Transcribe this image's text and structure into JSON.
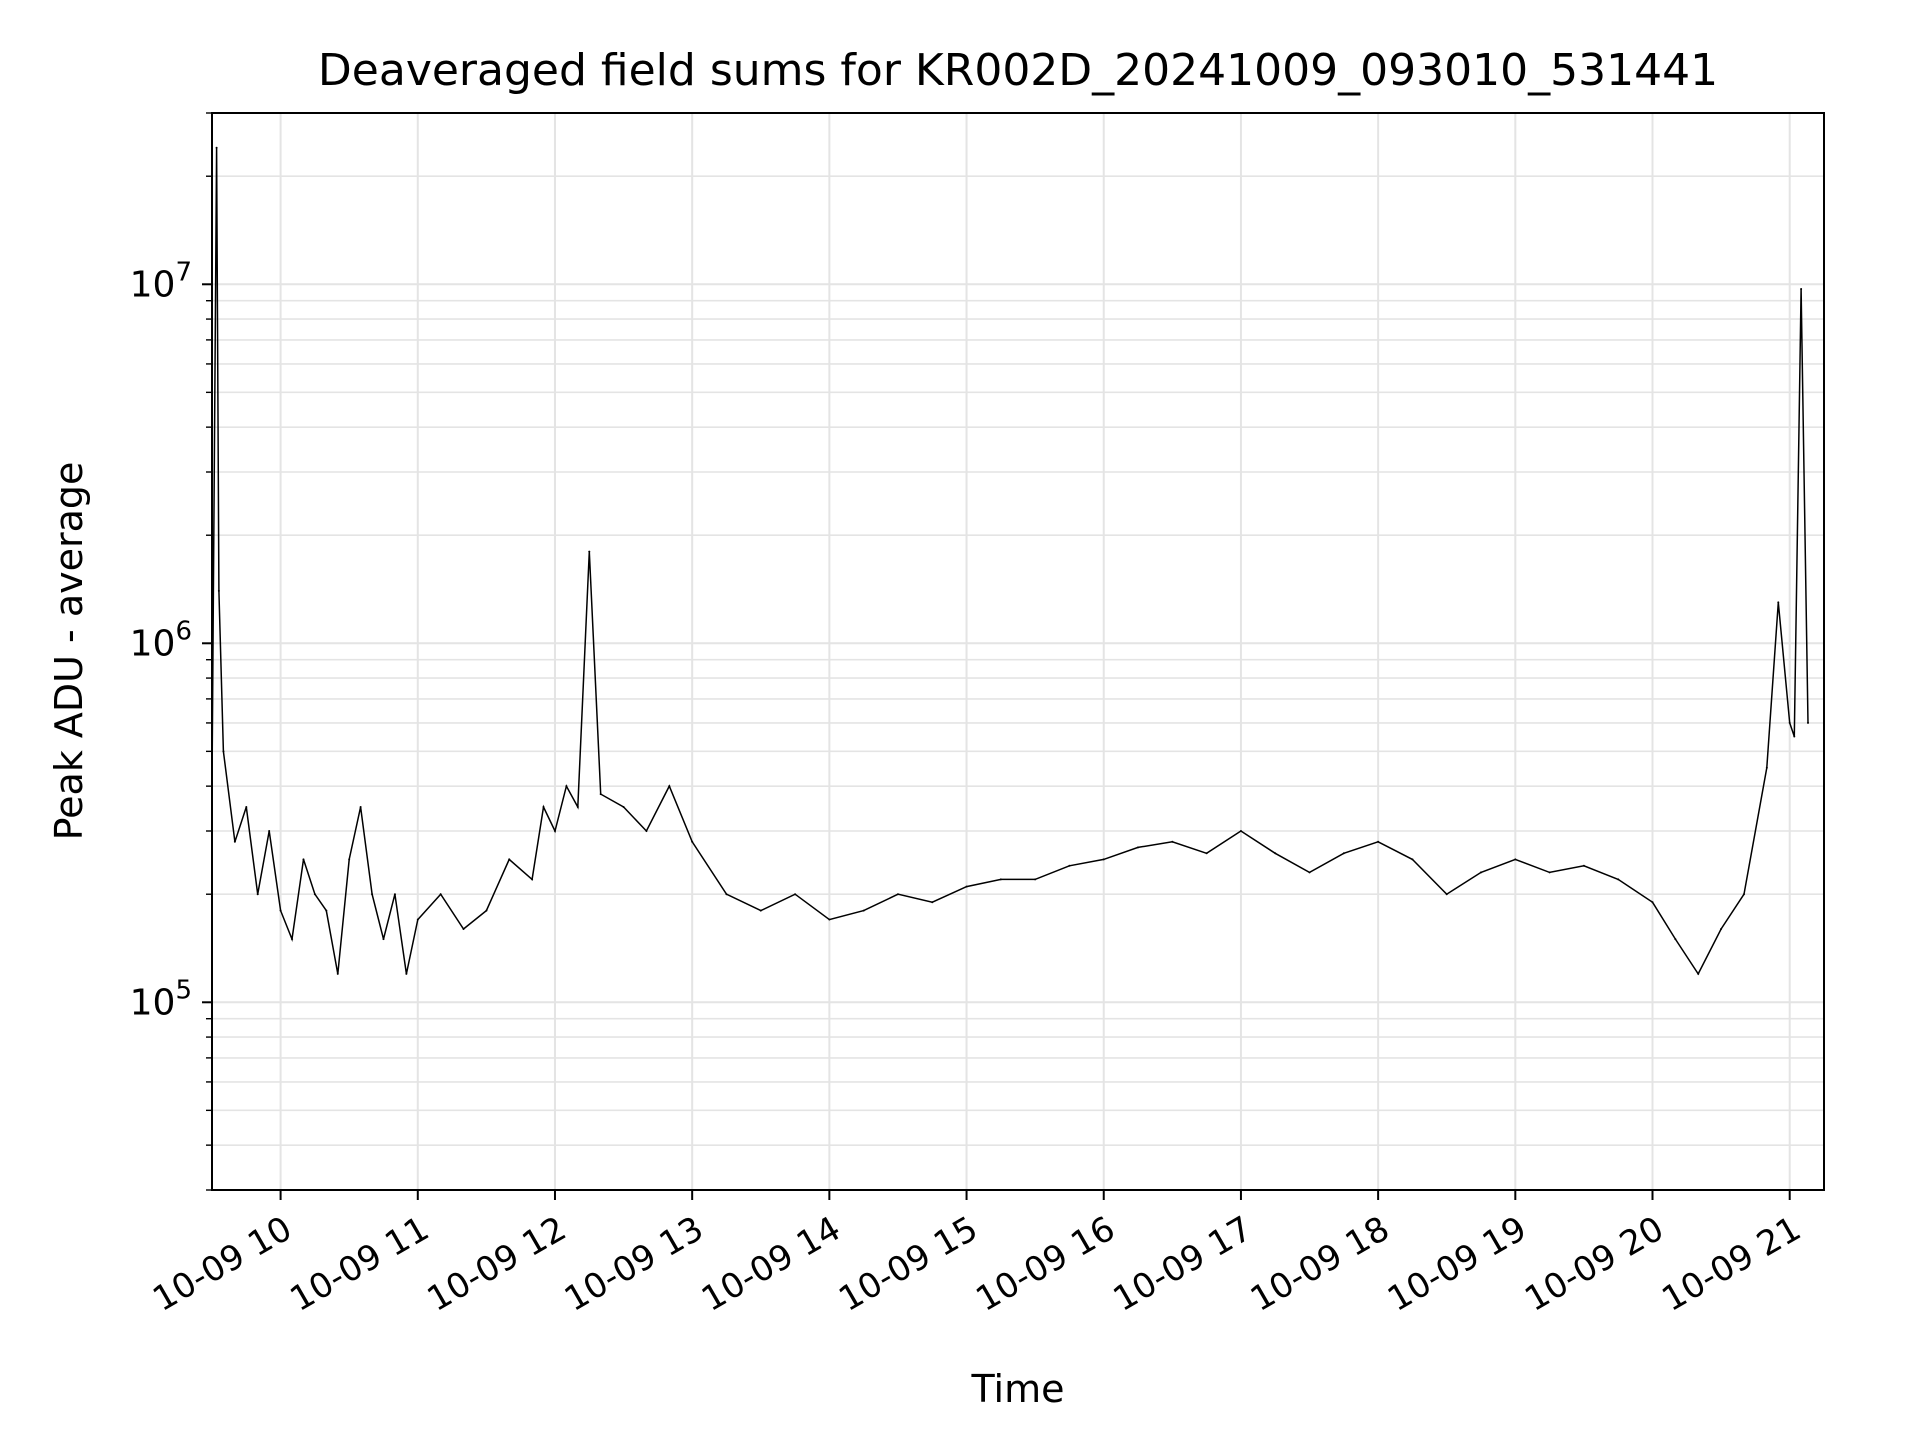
{
  "chart_data": {
    "type": "line",
    "title": "Deaveraged field sums for KR002D_20241009_093010_531441",
    "xlabel": "Time",
    "ylabel": "Peak ADU - average",
    "x_scale": "time",
    "y_scale": "log",
    "xlim": [
      "2024-10-09 09:30",
      "2024-10-09 21:15"
    ],
    "ylim": [
      30000,
      30000000
    ],
    "x_ticks": [
      "2024-10-09 10:00",
      "2024-10-09 11:00",
      "2024-10-09 12:00",
      "2024-10-09 13:00",
      "2024-10-09 14:00",
      "2024-10-09 15:00",
      "2024-10-09 16:00",
      "2024-10-09 17:00",
      "2024-10-09 18:00",
      "2024-10-09 19:00",
      "2024-10-09 20:00",
      "2024-10-09 21:00"
    ],
    "x_tick_labels": [
      "10-09 10",
      "10-09 11",
      "10-09 12",
      "10-09 13",
      "10-09 14",
      "10-09 15",
      "10-09 16",
      "10-09 17",
      "10-09 18",
      "10-09 19",
      "10-09 20",
      "10-09 21"
    ],
    "y_ticks": [
      100000,
      1000000,
      10000000
    ],
    "y_tick_labels": [
      {
        "base": "10",
        "exp": "5"
      },
      {
        "base": "10",
        "exp": "6"
      },
      {
        "base": "10",
        "exp": "7"
      }
    ],
    "grid": true,
    "line_color": "#000000",
    "series": [
      {
        "x": [
          "2024-10-09 09:30",
          "2024-10-09 09:32",
          "2024-10-09 09:33",
          "2024-10-09 09:35",
          "2024-10-09 09:40",
          "2024-10-09 09:45",
          "2024-10-09 09:50",
          "2024-10-09 09:55",
          "2024-10-09 10:00",
          "2024-10-09 10:05",
          "2024-10-09 10:10",
          "2024-10-09 10:15",
          "2024-10-09 10:20",
          "2024-10-09 10:25",
          "2024-10-09 10:30",
          "2024-10-09 10:35",
          "2024-10-09 10:40",
          "2024-10-09 10:45",
          "2024-10-09 10:50",
          "2024-10-09 10:55",
          "2024-10-09 11:00",
          "2024-10-09 11:10",
          "2024-10-09 11:20",
          "2024-10-09 11:30",
          "2024-10-09 11:40",
          "2024-10-09 11:50",
          "2024-10-09 11:55",
          "2024-10-09 12:00",
          "2024-10-09 12:05",
          "2024-10-09 12:10",
          "2024-10-09 12:15",
          "2024-10-09 12:20",
          "2024-10-09 12:30",
          "2024-10-09 12:40",
          "2024-10-09 12:50",
          "2024-10-09 13:00",
          "2024-10-09 13:15",
          "2024-10-09 13:30",
          "2024-10-09 13:45",
          "2024-10-09 14:00",
          "2024-10-09 14:15",
          "2024-10-09 14:30",
          "2024-10-09 14:45",
          "2024-10-09 15:00",
          "2024-10-09 15:15",
          "2024-10-09 15:30",
          "2024-10-09 15:45",
          "2024-10-09 16:00",
          "2024-10-09 16:15",
          "2024-10-09 16:30",
          "2024-10-09 16:45",
          "2024-10-09 17:00",
          "2024-10-09 17:15",
          "2024-10-09 17:30",
          "2024-10-09 17:45",
          "2024-10-09 18:00",
          "2024-10-09 18:15",
          "2024-10-09 18:30",
          "2024-10-09 18:45",
          "2024-10-09 19:00",
          "2024-10-09 19:15",
          "2024-10-09 19:30",
          "2024-10-09 19:45",
          "2024-10-09 20:00",
          "2024-10-09 20:10",
          "2024-10-09 20:20",
          "2024-10-09 20:30",
          "2024-10-09 20:40",
          "2024-10-09 20:50",
          "2024-10-09 20:55",
          "2024-10-09 21:00",
          "2024-10-09 21:02",
          "2024-10-09 21:05",
          "2024-10-09 21:08"
        ],
        "y": [
          400000,
          24000000,
          1400000,
          500000,
          280000,
          350000,
          200000,
          300000,
          180000,
          150000,
          250000,
          200000,
          180000,
          120000,
          250000,
          350000,
          200000,
          150000,
          200000,
          120000,
          170000,
          200000,
          160000,
          180000,
          250000,
          220000,
          350000,
          300000,
          400000,
          350000,
          1800000,
          380000,
          350000,
          300000,
          400000,
          280000,
          200000,
          180000,
          200000,
          170000,
          180000,
          200000,
          190000,
          210000,
          220000,
          220000,
          240000,
          250000,
          270000,
          280000,
          260000,
          300000,
          260000,
          230000,
          260000,
          280000,
          250000,
          200000,
          230000,
          250000,
          230000,
          240000,
          220000,
          190000,
          150000,
          120000,
          160000,
          200000,
          450000,
          1300000,
          600000,
          550000,
          9700000,
          600000
        ]
      }
    ]
  }
}
